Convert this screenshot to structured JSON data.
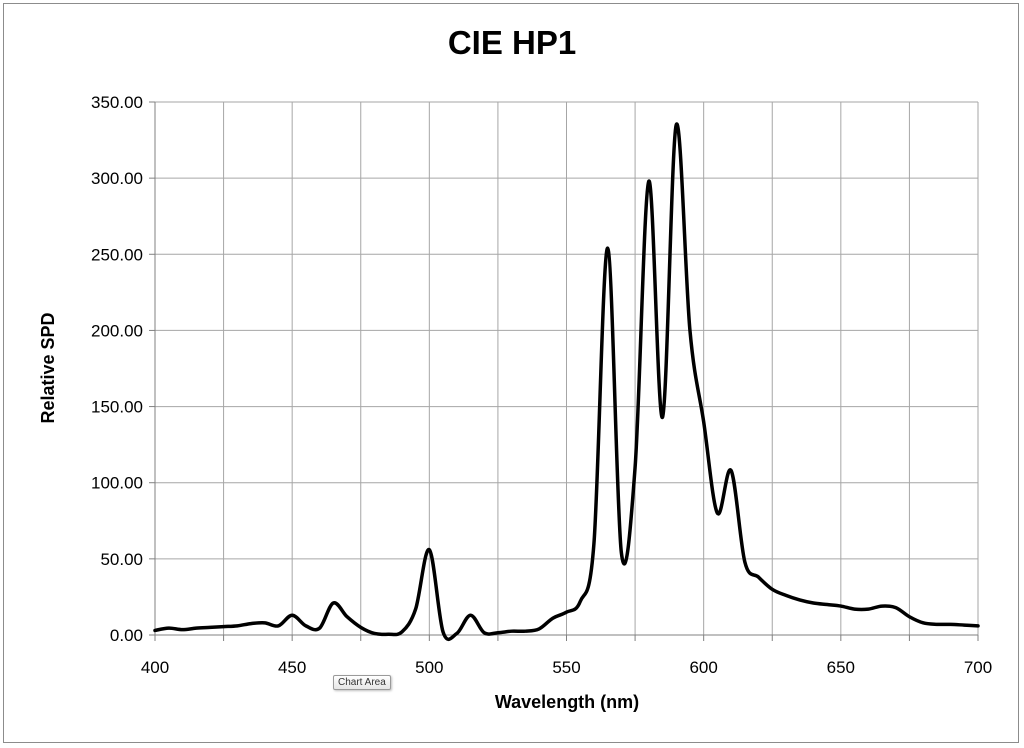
{
  "chart_data": {
    "type": "line",
    "title": "CIE HP1",
    "xlabel": "Wavelength (nm)",
    "ylabel": "Relative SPD",
    "xlim": [
      400,
      700
    ],
    "ylim": [
      0,
      350
    ],
    "x_ticks": [
      400,
      450,
      500,
      550,
      600,
      650,
      700
    ],
    "x_tick_labels": [
      "400",
      "450",
      "500",
      "550",
      "600",
      "650",
      "700"
    ],
    "y_ticks": [
      0,
      50,
      100,
      150,
      200,
      250,
      300,
      350
    ],
    "y_tick_labels": [
      "0.00",
      "50.00",
      "100.00",
      "150.00",
      "200.00",
      "250.00",
      "300.00",
      "350.00"
    ],
    "x_minor_grid_step": 25,
    "grid": true,
    "line_color": "#000000",
    "series": [
      {
        "x": [
          400,
          405,
          410,
          415,
          420,
          425,
          430,
          435,
          440,
          445,
          450,
          455,
          460,
          465,
          470,
          475,
          480,
          485,
          490,
          495,
          500,
          505,
          510,
          515,
          520,
          525,
          530,
          535,
          540,
          545,
          550,
          555,
          560,
          565,
          570,
          575,
          580,
          585,
          590,
          595,
          600,
          605,
          610,
          615,
          620,
          625,
          630,
          635,
          640,
          645,
          650,
          655,
          660,
          665,
          670,
          675,
          680,
          685,
          690,
          695,
          700
        ],
        "values": [
          3,
          4.5,
          3.5,
          4.5,
          5,
          5.5,
          6,
          7.5,
          8,
          6,
          13,
          6,
          4.5,
          21,
          12,
          5,
          1,
          0.5,
          2,
          17,
          56,
          2,
          1,
          13,
          1.5,
          1.5,
          2.5,
          2.5,
          4,
          11,
          15,
          22,
          60,
          254,
          54,
          110,
          298,
          143,
          335,
          200,
          140,
          80,
          108,
          48,
          38,
          30,
          26,
          23,
          21,
          20,
          19,
          17,
          17,
          19,
          18,
          12,
          8,
          7,
          7,
          6.5,
          6
        ]
      }
    ]
  },
  "ui": {
    "tooltip_text": "Chart Area"
  }
}
